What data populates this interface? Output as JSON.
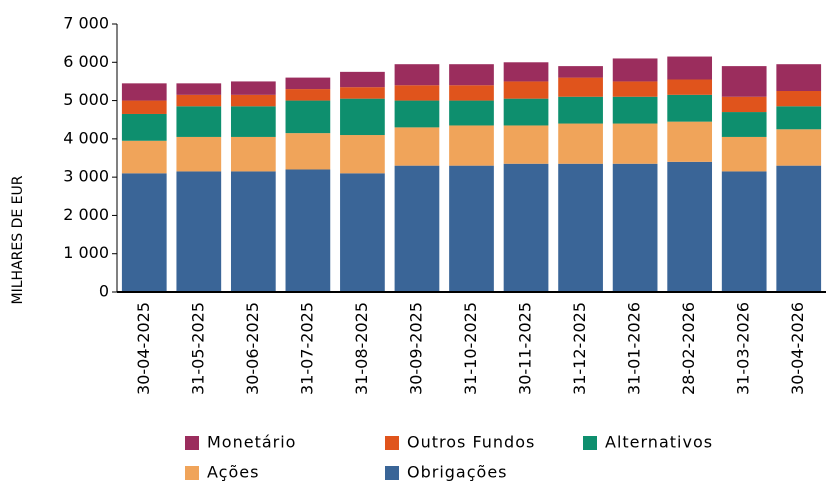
{
  "chart_data": {
    "type": "stacked_bar",
    "y_label": "MILHARES DE EUR",
    "categories": [
      "30-04-2025",
      "31-05-2025",
      "30-06-2025",
      "31-07-2025",
      "31-08-2025",
      "30-09-2025",
      "31-10-2025",
      "30-11-2025",
      "31-12-2025",
      "31-01-2026",
      "28-02-2026",
      "31-03-2026",
      "30-04-2026"
    ],
    "series": [
      {
        "name": "Monetário",
        "color": "#9b2d5d",
        "values": [
          450,
          300,
          350,
          300,
          400,
          550,
          550,
          500,
          300,
          600,
          600,
          800,
          700
        ]
      },
      {
        "name": "Outros Fundos",
        "color": "#e0541c",
        "values": [
          350,
          300,
          300,
          300,
          300,
          400,
          400,
          450,
          500,
          400,
          400,
          400,
          400
        ]
      },
      {
        "name": "Alternativos",
        "color": "#0e8f6e",
        "values": [
          700,
          800,
          800,
          850,
          950,
          700,
          650,
          700,
          700,
          700,
          700,
          650,
          600
        ]
      },
      {
        "name": "Ações",
        "color": "#f0a45a",
        "values": [
          850,
          900,
          900,
          950,
          1000,
          1000,
          1050,
          1000,
          1050,
          1050,
          1050,
          900,
          950
        ]
      },
      {
        "name": "Obrigações",
        "color": "#3a6597",
        "values": [
          3100,
          3150,
          3150,
          3200,
          3100,
          3300,
          3300,
          3350,
          3350,
          3350,
          3400,
          3150,
          3300
        ]
      }
    ],
    "ylim": [
      0,
      7000
    ],
    "yticks": [
      0,
      {
        "value": 1000,
        "label": "1 000"
      },
      {
        "value": 2000,
        "label": "2 000"
      },
      {
        "value": 3000,
        "label": "3 000"
      },
      {
        "value": 4000,
        "label": "4 000"
      },
      {
        "value": 5000,
        "label": "5 000"
      },
      {
        "value": 6000,
        "label": "6 000"
      },
      {
        "value": 7000,
        "label": "7 000"
      }
    ],
    "grid": false
  }
}
